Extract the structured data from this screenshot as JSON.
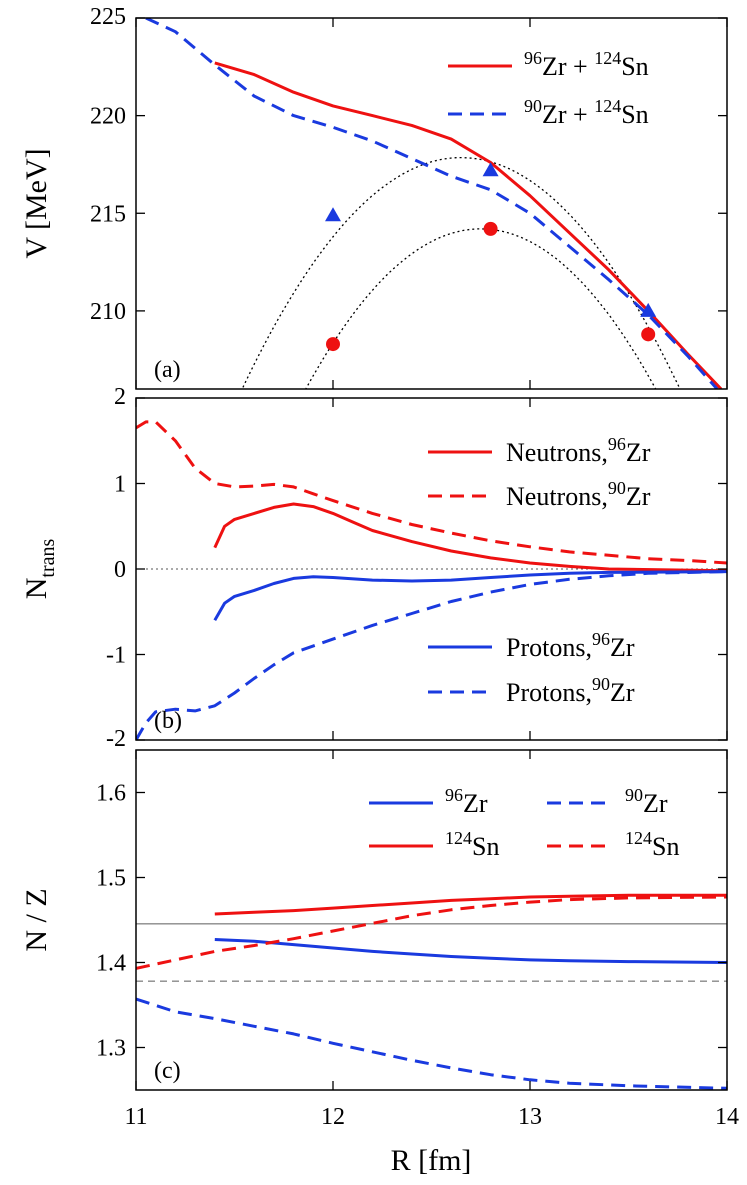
{
  "chart_data": [
    {
      "id": "a",
      "type": "line",
      "panel_label": "(a)",
      "ylabel": "V [MeV]",
      "xlim": [
        11,
        14
      ],
      "ylim": [
        206,
        225
      ],
      "yticks": [
        225,
        220,
        215,
        210
      ],
      "legend_position": "top-right",
      "series": [
        {
          "name_sup1": "96",
          "name_mid": "Zr + ",
          "name_sup2": "124",
          "name_end": "Sn",
          "color": "#ee1111",
          "dash": "solid",
          "points": [
            [
              11.4,
              222.7
            ],
            [
              11.6,
              222.1
            ],
            [
              11.8,
              221.2
            ],
            [
              12.0,
              220.5
            ],
            [
              12.2,
              220.0
            ],
            [
              12.4,
              219.5
            ],
            [
              12.6,
              218.8
            ],
            [
              12.8,
              217.6
            ],
            [
              13.0,
              215.9
            ],
            [
              13.2,
              214.0
            ],
            [
              13.4,
              212.1
            ],
            [
              13.6,
              210.0
            ],
            [
              13.8,
              207.8
            ],
            [
              13.97,
              206.0
            ]
          ]
        },
        {
          "name_sup1": "90",
          "name_mid": "Zr + ",
          "name_sup2": "124",
          "name_end": "Sn",
          "color": "#1a3adf",
          "dash": "dashed",
          "points": [
            [
              11.05,
              225.0
            ],
            [
              11.2,
              224.3
            ],
            [
              11.4,
              222.6
            ],
            [
              11.6,
              221.0
            ],
            [
              11.8,
              220.0
            ],
            [
              12.0,
              219.4
            ],
            [
              12.2,
              218.7
            ],
            [
              12.4,
              217.8
            ],
            [
              12.6,
              216.9
            ],
            [
              12.8,
              216.2
            ],
            [
              13.0,
              215.0
            ],
            [
              13.2,
              213.3
            ],
            [
              13.4,
              211.6
            ],
            [
              13.6,
              209.8
            ],
            [
              13.8,
              207.7
            ],
            [
              13.95,
              206.0
            ]
          ]
        }
      ],
      "markers": [
        {
          "shape": "circle",
          "color": "#ee1111",
          "points": [
            [
              12.0,
              208.3
            ],
            [
              12.8,
              214.2
            ],
            [
              13.6,
              208.8
            ]
          ]
        },
        {
          "shape": "triangle",
          "color": "#1a3adf",
          "points": [
            [
              12.0,
              214.9
            ],
            [
              12.8,
              217.2
            ],
            [
              13.6,
              210.0
            ]
          ]
        }
      ],
      "fits": [
        {
          "color": "#000000",
          "vertex": [
            12.65,
            217.85
          ],
          "a": 9.6,
          "x_from": 11.5,
          "x_to": 14.0
        },
        {
          "color": "#000000",
          "vertex": [
            12.75,
            214.2
          ],
          "a": 10.4,
          "x_from": 11.86,
          "x_to": 14.0
        }
      ]
    },
    {
      "id": "b",
      "type": "line",
      "panel_label": "(b)",
      "ylabel_main": "N",
      "ylabel_sub": "trans",
      "xlim": [
        11,
        14
      ],
      "ylim": [
        -2,
        2
      ],
      "yticks": [
        2,
        1,
        0,
        -1,
        -2
      ],
      "zero_line": 0,
      "legend_position": "top-right and bottom-right",
      "series": [
        {
          "name": "Neutrons,",
          "sup": "96",
          "end": "Zr",
          "color": "#ee1111",
          "dash": "solid",
          "points": [
            [
              11.4,
              0.25
            ],
            [
              11.45,
              0.5
            ],
            [
              11.5,
              0.58
            ],
            [
              11.6,
              0.65
            ],
            [
              11.7,
              0.72
            ],
            [
              11.8,
              0.76
            ],
            [
              11.9,
              0.73
            ],
            [
              12.0,
              0.65
            ],
            [
              12.1,
              0.55
            ],
            [
              12.2,
              0.45
            ],
            [
              12.4,
              0.32
            ],
            [
              12.6,
              0.21
            ],
            [
              12.8,
              0.13
            ],
            [
              13.0,
              0.07
            ],
            [
              13.2,
              0.03
            ],
            [
              13.4,
              0.0
            ],
            [
              14.0,
              -0.02
            ]
          ]
        },
        {
          "name": "Neutrons,",
          "sup": "90",
          "end": "Zr",
          "color": "#ee1111",
          "dash": "dashed",
          "points": [
            [
              11.0,
              1.65
            ],
            [
              11.05,
              1.72
            ],
            [
              11.1,
              1.72
            ],
            [
              11.2,
              1.5
            ],
            [
              11.3,
              1.18
            ],
            [
              11.4,
              1.0
            ],
            [
              11.5,
              0.96
            ],
            [
              11.6,
              0.97
            ],
            [
              11.7,
              0.99
            ],
            [
              11.8,
              0.96
            ],
            [
              11.9,
              0.88
            ],
            [
              12.0,
              0.8
            ],
            [
              12.2,
              0.65
            ],
            [
              12.4,
              0.52
            ],
            [
              12.6,
              0.42
            ],
            [
              12.8,
              0.33
            ],
            [
              13.0,
              0.26
            ],
            [
              13.2,
              0.2
            ],
            [
              13.4,
              0.16
            ],
            [
              13.6,
              0.12
            ],
            [
              13.8,
              0.1
            ],
            [
              14.0,
              0.07
            ]
          ]
        },
        {
          "name": "Protons,",
          "sup": "96",
          "end": "Zr",
          "color": "#1a3adf",
          "dash": "solid",
          "points": [
            [
              11.4,
              -0.6
            ],
            [
              11.45,
              -0.4
            ],
            [
              11.5,
              -0.32
            ],
            [
              11.6,
              -0.25
            ],
            [
              11.7,
              -0.17
            ],
            [
              11.8,
              -0.11
            ],
            [
              11.9,
              -0.09
            ],
            [
              12.0,
              -0.1
            ],
            [
              12.2,
              -0.13
            ],
            [
              12.4,
              -0.14
            ],
            [
              12.6,
              -0.13
            ],
            [
              12.8,
              -0.1
            ],
            [
              13.0,
              -0.07
            ],
            [
              13.2,
              -0.05
            ],
            [
              13.4,
              -0.04
            ],
            [
              14.0,
              -0.03
            ]
          ]
        },
        {
          "name": "Protons,",
          "sup": "90",
          "end": "Zr",
          "color": "#1a3adf",
          "dash": "dashed",
          "points": [
            [
              11.0,
              -2.0
            ],
            [
              11.05,
              -1.8
            ],
            [
              11.1,
              -1.67
            ],
            [
              11.2,
              -1.64
            ],
            [
              11.3,
              -1.66
            ],
            [
              11.4,
              -1.6
            ],
            [
              11.5,
              -1.45
            ],
            [
              11.6,
              -1.28
            ],
            [
              11.7,
              -1.12
            ],
            [
              11.8,
              -0.98
            ],
            [
              12.0,
              -0.82
            ],
            [
              12.2,
              -0.66
            ],
            [
              12.4,
              -0.52
            ],
            [
              12.6,
              -0.38
            ],
            [
              12.8,
              -0.27
            ],
            [
              13.0,
              -0.18
            ],
            [
              13.2,
              -0.12
            ],
            [
              13.4,
              -0.08
            ],
            [
              13.6,
              -0.05
            ],
            [
              14.0,
              -0.03
            ]
          ]
        }
      ]
    },
    {
      "id": "c",
      "type": "line",
      "panel_label": "(c)",
      "ylabel": "N / Z",
      "xlabel": "R [fm]",
      "xlim": [
        11,
        14
      ],
      "ylim": [
        1.25,
        1.65
      ],
      "yticks": [
        1.6,
        1.5,
        1.4,
        1.3
      ],
      "xticks": [
        11,
        12,
        13,
        14
      ],
      "legend_position": "top-right",
      "reference_lines": [
        {
          "value": 1.4455,
          "color": "#888888",
          "dash": "solid"
        },
        {
          "value": 1.378,
          "color": "#888888",
          "dash": "dashed"
        }
      ],
      "series": [
        {
          "sup": "96",
          "end": "Zr",
          "color": "#1a3adf",
          "dash": "solid",
          "points": [
            [
              11.4,
              1.427
            ],
            [
              11.6,
              1.425
            ],
            [
              11.8,
              1.421
            ],
            [
              12.0,
              1.417
            ],
            [
              12.2,
              1.413
            ],
            [
              12.4,
              1.41
            ],
            [
              12.6,
              1.407
            ],
            [
              12.8,
              1.405
            ],
            [
              13.0,
              1.403
            ],
            [
              13.2,
              1.402
            ],
            [
              13.5,
              1.401
            ],
            [
              14.0,
              1.4
            ]
          ]
        },
        {
          "sup": "124",
          "end": "Sn",
          "color": "#ee1111",
          "dash": "solid",
          "points": [
            [
              11.4,
              1.457
            ],
            [
              11.6,
              1.459
            ],
            [
              11.8,
              1.461
            ],
            [
              12.0,
              1.464
            ],
            [
              12.2,
              1.467
            ],
            [
              12.4,
              1.47
            ],
            [
              12.6,
              1.473
            ],
            [
              12.8,
              1.475
            ],
            [
              13.0,
              1.477
            ],
            [
              13.2,
              1.478
            ],
            [
              13.5,
              1.479
            ],
            [
              14.0,
              1.479
            ]
          ]
        },
        {
          "sup": "90",
          "end": "Zr",
          "color": "#1a3adf",
          "dash": "dashed",
          "points": [
            [
              11.0,
              1.357
            ],
            [
              11.2,
              1.342
            ],
            [
              11.4,
              1.334
            ],
            [
              11.6,
              1.325
            ],
            [
              11.8,
              1.316
            ],
            [
              12.0,
              1.305
            ],
            [
              12.2,
              1.295
            ],
            [
              12.4,
              1.285
            ],
            [
              12.6,
              1.276
            ],
            [
              12.8,
              1.268
            ],
            [
              13.0,
              1.262
            ],
            [
              13.2,
              1.258
            ],
            [
              13.5,
              1.255
            ],
            [
              14.0,
              1.252
            ]
          ]
        },
        {
          "sup": "124",
          "end": "Sn",
          "color": "#ee1111",
          "dash": "dashed",
          "points": [
            [
              11.0,
              1.393
            ],
            [
              11.2,
              1.403
            ],
            [
              11.4,
              1.413
            ],
            [
              11.6,
              1.42
            ],
            [
              11.8,
              1.428
            ],
            [
              12.0,
              1.437
            ],
            [
              12.2,
              1.446
            ],
            [
              12.4,
              1.455
            ],
            [
              12.6,
              1.462
            ],
            [
              12.8,
              1.467
            ],
            [
              13.0,
              1.471
            ],
            [
              13.2,
              1.474
            ],
            [
              13.5,
              1.476
            ],
            [
              14.0,
              1.477
            ]
          ]
        }
      ]
    }
  ]
}
